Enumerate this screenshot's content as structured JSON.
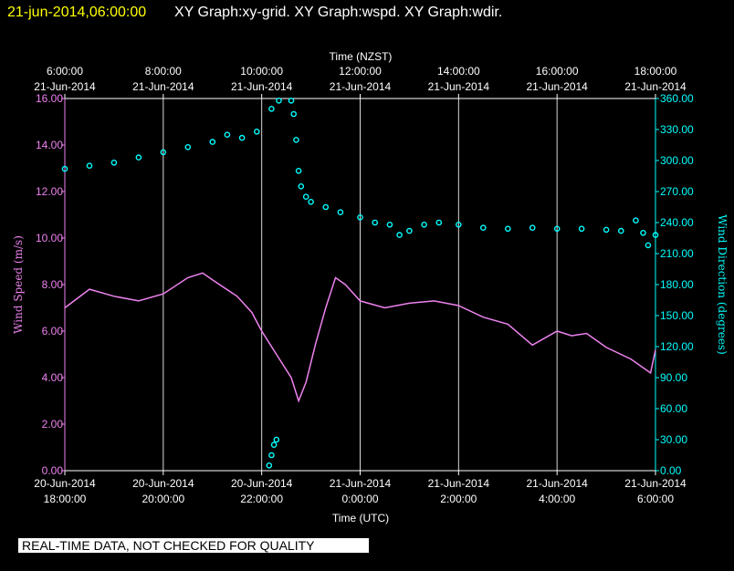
{
  "header": {
    "timestamp": "21-jun-2014,06:00:00",
    "graphs": "XY Graph:xy-grid.  XY Graph:wspd.  XY Graph:wdir."
  },
  "footer": {
    "quality_note": "REAL-TIME DATA, NOT CHECKED FOR QUALITY"
  },
  "colors": {
    "background": "#000000",
    "timestamp": "#ffff00",
    "speed": "#ee82ee",
    "direction": "#00ffff",
    "grid": "#ffffff"
  },
  "chart_data": {
    "type": "line",
    "top_axis": {
      "title": "Time (NZST)",
      "ticks": [
        {
          "time": "6:00:00",
          "date": "21-Jun-2014"
        },
        {
          "time": "8:00:00",
          "date": "21-Jun-2014"
        },
        {
          "time": "10:00:00",
          "date": "21-Jun-2014"
        },
        {
          "time": "12:00:00",
          "date": "21-Jun-2014"
        },
        {
          "time": "14:00:00",
          "date": "21-Jun-2014"
        },
        {
          "time": "16:00:00",
          "date": "21-Jun-2014"
        },
        {
          "time": "18:00:00",
          "date": "21-Jun-2014"
        }
      ]
    },
    "bottom_axis": {
      "title": "Time (UTC)",
      "ticks": [
        {
          "date": "20-Jun-2014",
          "time": "18:00:00"
        },
        {
          "date": "20-Jun-2014",
          "time": "20:00:00"
        },
        {
          "date": "20-Jun-2014",
          "time": "22:00:00"
        },
        {
          "date": "21-Jun-2014",
          "time": "0:00:00"
        },
        {
          "date": "21-Jun-2014",
          "time": "2:00:00"
        },
        {
          "date": "21-Jun-2014",
          "time": "4:00:00"
        },
        {
          "date": "21-Jun-2014",
          "time": "6:00:00"
        }
      ],
      "xlim_hours_utc": [
        18,
        30
      ]
    },
    "left_axis": {
      "title": "Wind Speed (m/s)",
      "ticks": [
        "0.00",
        "2.00",
        "4.00",
        "6.00",
        "8.00",
        "10.00",
        "12.00",
        "14.00",
        "16.00"
      ],
      "ylim": [
        0,
        16
      ]
    },
    "right_axis": {
      "title": "Wind Direction (degrees)",
      "ticks": [
        "0.00",
        "30.00",
        "60.00",
        "90.00",
        "120.00",
        "150.00",
        "180.00",
        "210.00",
        "240.00",
        "270.00",
        "300.00",
        "330.00",
        "360.00"
      ],
      "ylim": [
        0,
        360
      ]
    },
    "grid": true,
    "series": [
      {
        "name": "Wind Speed",
        "axis": "left",
        "style": "line",
        "color": "#ee82ee",
        "points": [
          [
            18.0,
            7.0
          ],
          [
            18.5,
            7.8
          ],
          [
            19.0,
            7.5
          ],
          [
            19.5,
            7.3
          ],
          [
            20.0,
            7.6
          ],
          [
            20.5,
            8.3
          ],
          [
            20.8,
            8.5
          ],
          [
            21.0,
            8.2
          ],
          [
            21.5,
            7.5
          ],
          [
            21.8,
            6.8
          ],
          [
            22.0,
            6.0
          ],
          [
            22.3,
            5.0
          ],
          [
            22.6,
            4.0
          ],
          [
            22.75,
            3.0
          ],
          [
            22.9,
            3.8
          ],
          [
            23.1,
            5.5
          ],
          [
            23.3,
            7.0
          ],
          [
            23.5,
            8.3
          ],
          [
            23.7,
            8.0
          ],
          [
            24.0,
            7.3
          ],
          [
            24.5,
            7.0
          ],
          [
            25.0,
            7.2
          ],
          [
            25.5,
            7.3
          ],
          [
            26.0,
            7.1
          ],
          [
            26.5,
            6.6
          ],
          [
            27.0,
            6.3
          ],
          [
            27.5,
            5.4
          ],
          [
            28.0,
            6.0
          ],
          [
            28.3,
            5.8
          ],
          [
            28.6,
            5.9
          ],
          [
            29.0,
            5.3
          ],
          [
            29.5,
            4.8
          ],
          [
            29.9,
            4.2
          ],
          [
            30.0,
            5.2
          ]
        ]
      },
      {
        "name": "Wind Direction",
        "axis": "right",
        "style": "markers",
        "color": "#00ffff",
        "points": [
          [
            18.0,
            292
          ],
          [
            18.5,
            295
          ],
          [
            19.0,
            298
          ],
          [
            19.5,
            303
          ],
          [
            20.0,
            308
          ],
          [
            20.5,
            313
          ],
          [
            21.0,
            318
          ],
          [
            21.3,
            325
          ],
          [
            21.6,
            322
          ],
          [
            21.9,
            328
          ],
          [
            22.2,
            350
          ],
          [
            22.35,
            358
          ],
          [
            22.15,
            5
          ],
          [
            22.2,
            15
          ],
          [
            22.25,
            25
          ],
          [
            22.3,
            30
          ],
          [
            22.6,
            358
          ],
          [
            22.65,
            345
          ],
          [
            22.7,
            320
          ],
          [
            22.75,
            290
          ],
          [
            22.8,
            275
          ],
          [
            22.9,
            265
          ],
          [
            23.0,
            260
          ],
          [
            23.3,
            255
          ],
          [
            23.6,
            250
          ],
          [
            24.0,
            245
          ],
          [
            24.3,
            240
          ],
          [
            24.6,
            238
          ],
          [
            24.8,
            228
          ],
          [
            25.0,
            232
          ],
          [
            25.3,
            238
          ],
          [
            25.6,
            240
          ],
          [
            26.0,
            238
          ],
          [
            26.5,
            235
          ],
          [
            27.0,
            234
          ],
          [
            27.5,
            235
          ],
          [
            28.0,
            234
          ],
          [
            28.5,
            234
          ],
          [
            29.0,
            233
          ],
          [
            29.3,
            232
          ],
          [
            29.6,
            242
          ],
          [
            29.75,
            230
          ],
          [
            29.85,
            218
          ],
          [
            30.0,
            228
          ]
        ]
      }
    ]
  }
}
